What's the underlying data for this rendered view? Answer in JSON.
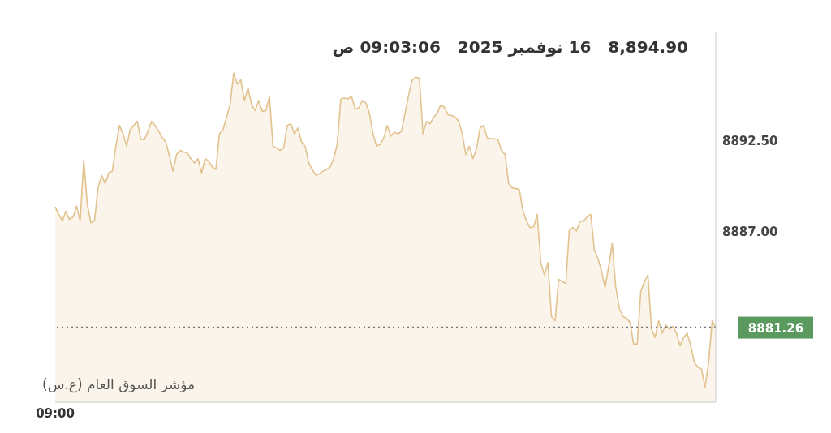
{
  "chart_data": {
    "type": "area",
    "title": "8,894.90   16 نوفمبر 2025   09:03:06 ص",
    "annotations": [
      "مؤشر السوق العام (ع.س)"
    ],
    "categories": [
      "09:00",
      null,
      null,
      null,
      null,
      null,
      null,
      null,
      null,
      null,
      null,
      null,
      null,
      null,
      null,
      null,
      null,
      null,
      null,
      null,
      null,
      null,
      null,
      null,
      null,
      null,
      null,
      null,
      null,
      null,
      null,
      null,
      null,
      null,
      null,
      null,
      null,
      null,
      null,
      null,
      null,
      null,
      null,
      null,
      null,
      null,
      null,
      null,
      null,
      null,
      null,
      null,
      null,
      null,
      null,
      null,
      null,
      null,
      null,
      null,
      null,
      null,
      null,
      null,
      null,
      null,
      null,
      null,
      null,
      null,
      null,
      null,
      null,
      null,
      null,
      null,
      null,
      null,
      null,
      null,
      null,
      null,
      null,
      null,
      null,
      null,
      null,
      null,
      null,
      null,
      null,
      null,
      null,
      null,
      null,
      null,
      null,
      null,
      null,
      null,
      null,
      null,
      null,
      null,
      null,
      null,
      null,
      null,
      null,
      null,
      null,
      null,
      null,
      null,
      null,
      null,
      null,
      null,
      null,
      null,
      null,
      null,
      null,
      null,
      null,
      null,
      null,
      null,
      null,
      null,
      null,
      null,
      null,
      null,
      null,
      null,
      null,
      null,
      null,
      null,
      null,
      null,
      null,
      null,
      null,
      null,
      null,
      null,
      null,
      null,
      null,
      null,
      null,
      null,
      null,
      null,
      null,
      null,
      null,
      null,
      null,
      null,
      null,
      null,
      null,
      null,
      null,
      null,
      null,
      null,
      null,
      null,
      null,
      null,
      null,
      null,
      null,
      null,
      null,
      null,
      null,
      null,
      null,
      null,
      null,
      null
    ],
    "series": [
      {
        "color": "#e2c28e",
        "values": [
          8888.5,
          8888.05,
          8887.65,
          8888.25,
          8887.75,
          8887.9,
          8888.55,
          8887.65,
          8891.3,
          8888.65,
          8887.55,
          8887.65,
          8889.65,
          8890.4,
          8889.9,
          8890.55,
          8890.65,
          8892.15,
          8893.4,
          8892.9,
          8892.15,
          8893.15,
          8893.4,
          8893.65,
          8892.55,
          8892.55,
          8893.05,
          8893.65,
          8893.4,
          8893.05,
          8892.65,
          8892.4,
          8891.55,
          8890.65,
          8891.65,
          8891.9,
          8891.8,
          8891.75,
          8891.4,
          8891.15,
          8891.4,
          8890.55,
          8891.4,
          8891.25,
          8890.9,
          8890.75,
          8892.9,
          8893.15,
          8893.9,
          8894.65,
          8896.55,
          8895.9,
          8896.15,
          8894.9,
          8895.65,
          8894.65,
          8894.3,
          8894.9,
          8894.25,
          8894.3,
          8895.15,
          8892.15,
          8892.05,
          8891.9,
          8892.05,
          8893.4,
          8893.5,
          8892.9,
          8893.25,
          8892.4,
          8892.15,
          8891.15,
          8890.75,
          8890.4,
          8890.5,
          8890.65,
          8890.75,
          8890.9,
          8891.4,
          8892.3,
          8895.0,
          8895.05,
          8895.0,
          8895.15,
          8894.4,
          8894.45,
          8894.9,
          8894.75,
          8894.15,
          8892.9,
          8892.15,
          8892.25,
          8892.65,
          8893.4,
          8892.75,
          8893.0,
          8892.9,
          8893.05,
          8894.15,
          8895.25,
          8896.15,
          8896.3,
          8896.25,
          8892.9,
          8893.65,
          8893.5,
          8893.9,
          8894.15,
          8894.65,
          8894.5,
          8894.05,
          8894.0,
          8893.9,
          8893.65,
          8892.9,
          8891.65,
          8892.15,
          8891.4,
          8892.0,
          8893.25,
          8893.4,
          8892.65,
          8892.6,
          8892.6,
          8892.55,
          8891.9,
          8891.65,
          8889.9,
          8889.65,
          8889.6,
          8889.55,
          8888.25,
          8887.65,
          8887.25,
          8887.3,
          8888.05,
          8885.15,
          8884.4,
          8885.15,
          8881.9,
          8881.65,
          8884.15,
          8884.0,
          8883.9,
          8887.15,
          8887.25,
          8887.05,
          8887.65,
          8887.65,
          8887.9,
          8888.05,
          8885.9,
          8885.4,
          8884.65,
          8883.65,
          8884.9,
          8886.3,
          8883.65,
          8882.4,
          8881.9,
          8881.8,
          8881.55,
          8880.25,
          8880.25,
          8883.4,
          8884.0,
          8884.4,
          8881.15,
          8880.65,
          8881.65,
          8880.9,
          8881.4,
          8881.15,
          8881.3,
          8880.9,
          8880.15,
          8880.65,
          8880.9,
          8880.15,
          8879.15,
          8878.85,
          8878.75,
          8877.65,
          8879.15,
          8881.65,
          8881.26
        ]
      }
    ],
    "ylim": [
      8876.75,
      8899.0
    ],
    "yticks": [
      {
        "value": 8892.5,
        "label": "8892.50"
      },
      {
        "value": 8887.0,
        "label": "8887.00"
      }
    ],
    "ref_lines": [
      {
        "axis": "y",
        "value": 8881.26,
        "label": "8881.26",
        "line_style": "dotted"
      }
    ],
    "grid": false,
    "legend": false
  }
}
